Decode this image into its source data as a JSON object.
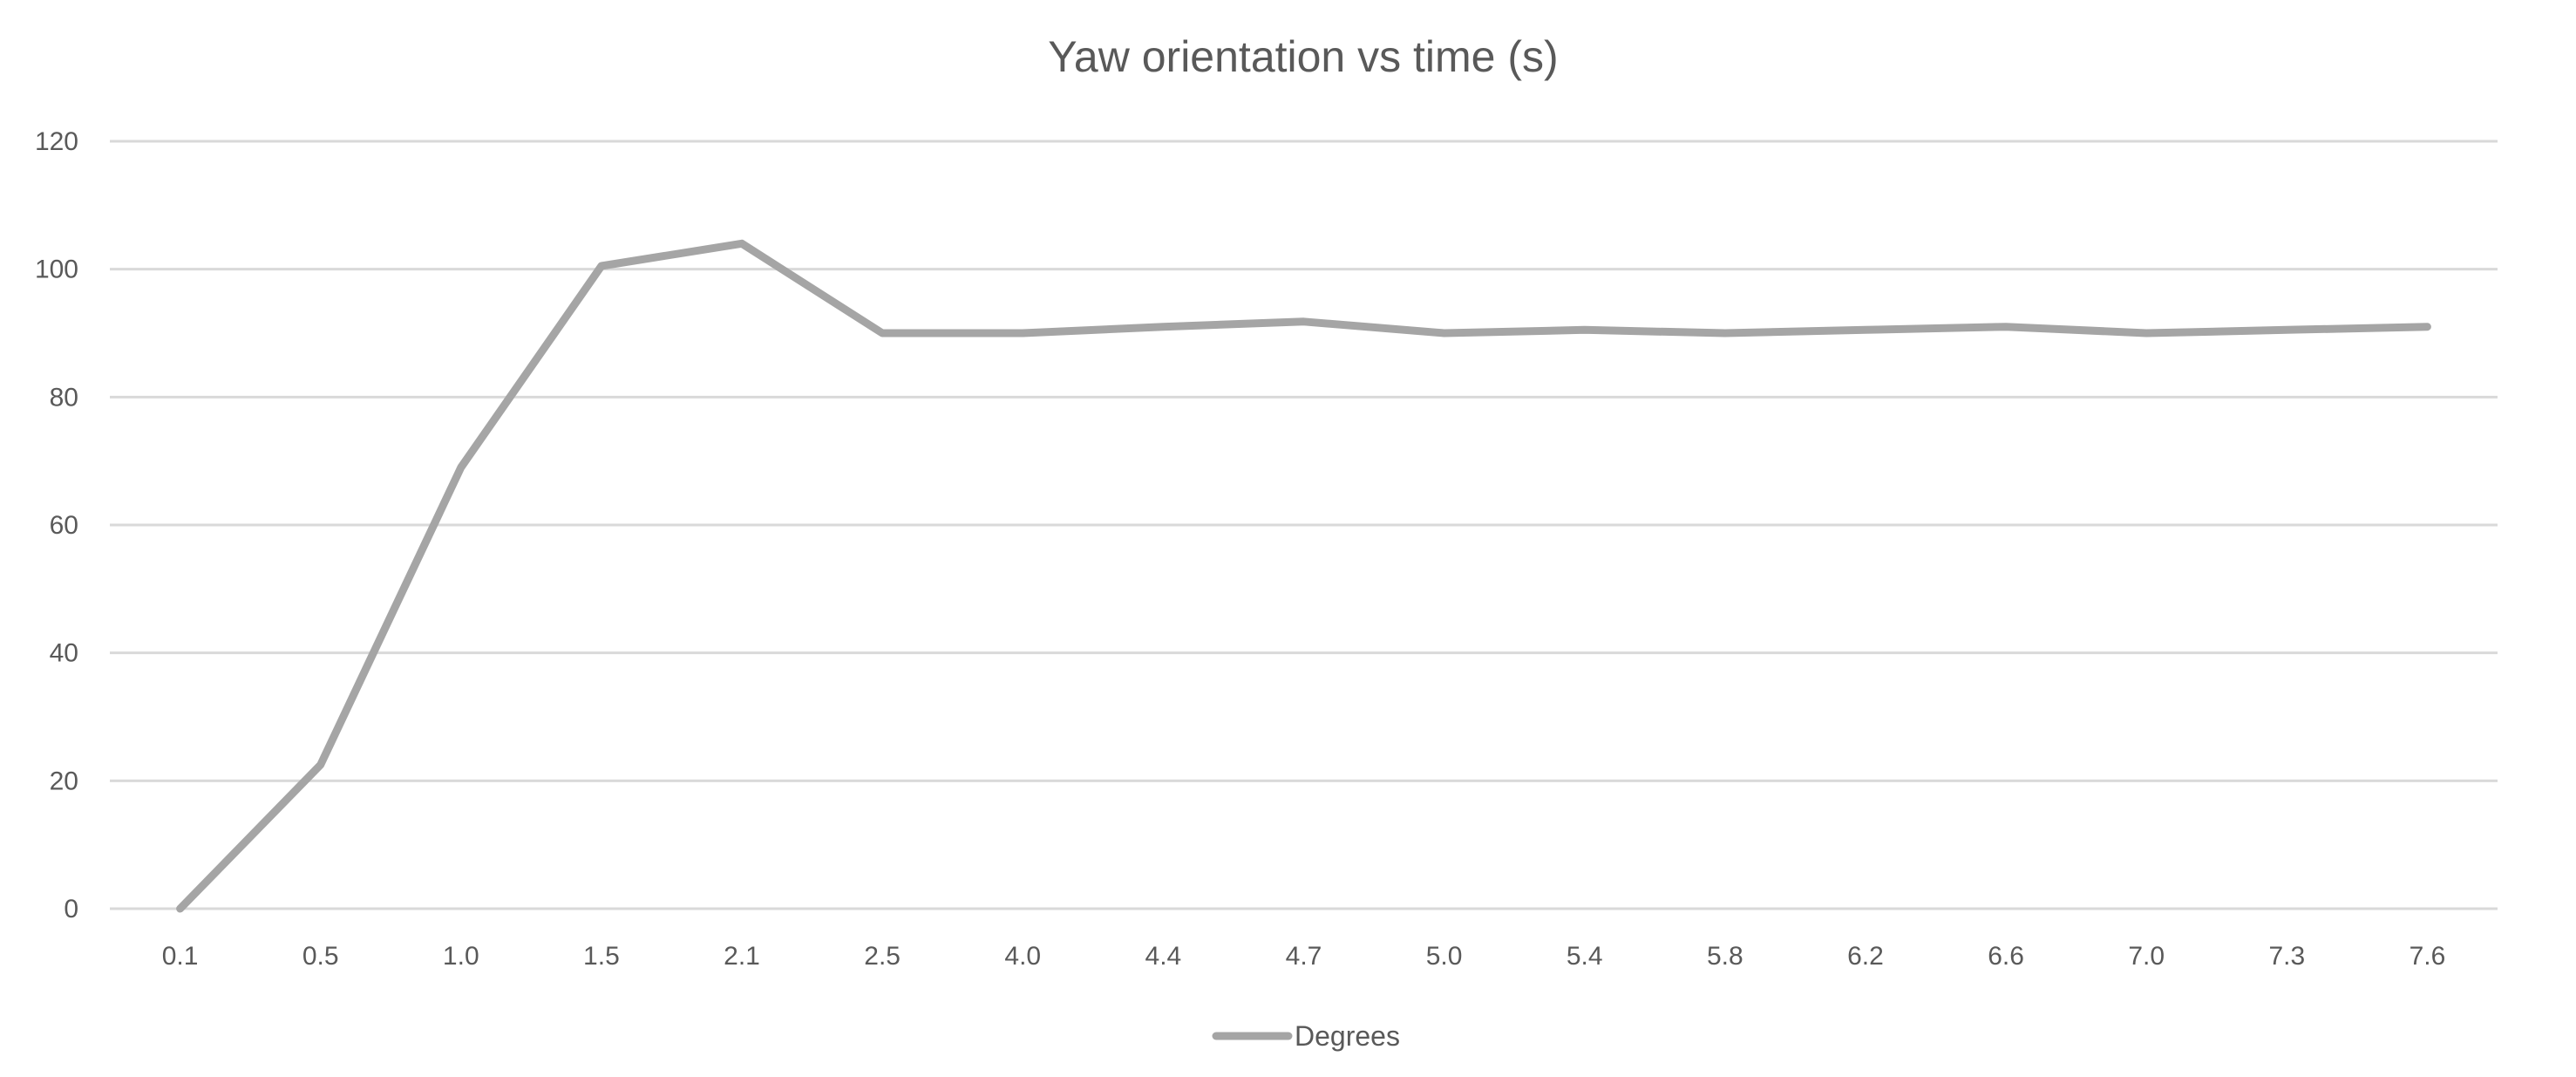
{
  "chart_data": {
    "type": "line",
    "title": "Yaw orientation vs time (s)",
    "xlabel": "",
    "ylabel": "",
    "categories": [
      "0.1",
      "0.5",
      "1.0",
      "1.5",
      "2.1",
      "2.5",
      "4.0",
      "4.4",
      "4.7",
      "5.0",
      "5.4",
      "5.8",
      "6.2",
      "6.6",
      "7.0",
      "7.3",
      "7.6"
    ],
    "series": [
      {
        "name": "Degrees",
        "color": "#a5a5a5",
        "values": [
          0,
          22.5,
          69,
          100.5,
          104,
          90,
          90,
          91,
          91.8,
          90,
          90.5,
          90,
          90.5,
          91,
          90,
          90.5,
          91
        ]
      }
    ],
    "ylim": [
      0,
      120
    ],
    "yticks": [
      0,
      20,
      40,
      60,
      80,
      100,
      120
    ],
    "grid": true,
    "legend_position": "bottom",
    "colors": {
      "text": "#595959",
      "grid": "#d9d9d9",
      "line": "#a5a5a5"
    }
  }
}
